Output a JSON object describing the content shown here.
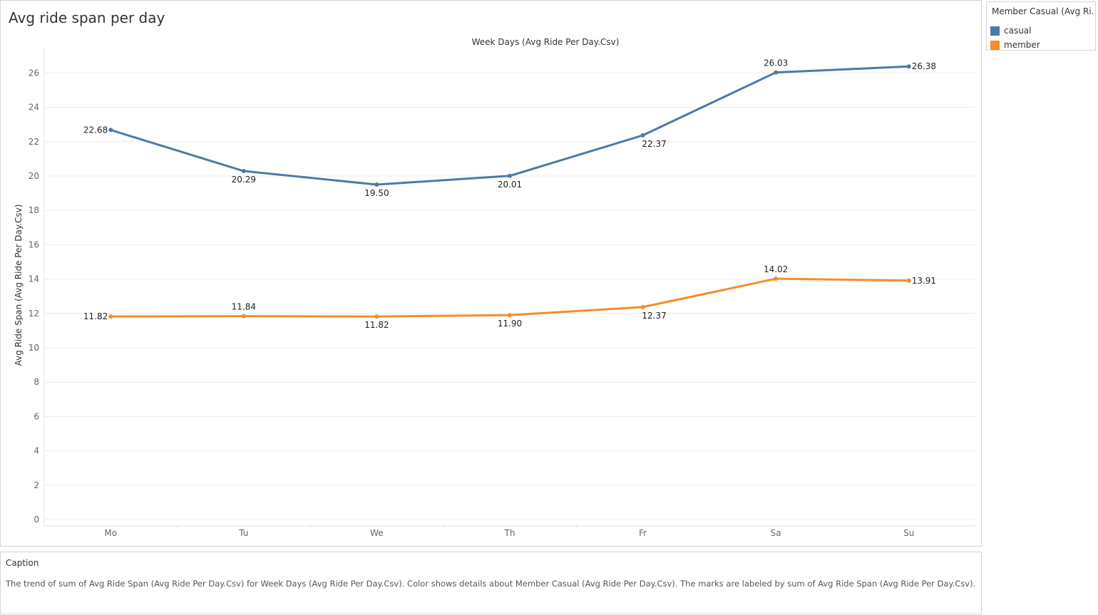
{
  "sheet": {
    "title": "Avg ride span per day"
  },
  "legend": {
    "title": "Member Casual (Avg Ri...",
    "items": [
      {
        "label": "casual",
        "color": "#4e79a7"
      },
      {
        "label": "member",
        "color": "#f28e2b"
      }
    ]
  },
  "caption": {
    "title": "Caption",
    "text": "The trend of sum of Avg Ride Span (Avg Ride Per Day.Csv) for Week Days (Avg Ride Per Day.Csv).  Color shows details about Member Casual (Avg Ride Per Day.Csv).  The marks are labeled by sum of Avg Ride Span (Avg Ride Per Day.Csv)."
  },
  "chart_data": {
    "type": "line",
    "title": "Avg ride span per day",
    "xlabel": "Week Days (Avg Ride Per Day.Csv)",
    "ylabel": "Avg Ride Span (Avg Ride Per Day.Csv)",
    "categories": [
      "Mo",
      "Tu",
      "We",
      "Th",
      "Fr",
      "Sa",
      "Su"
    ],
    "ylim": [
      0,
      27
    ],
    "yticks": [
      0,
      2,
      4,
      6,
      8,
      10,
      12,
      14,
      16,
      18,
      20,
      22,
      24,
      26
    ],
    "grid": true,
    "legend_position": "top-right",
    "series": [
      {
        "name": "casual",
        "color": "#4e79a7",
        "values": [
          22.68,
          20.29,
          19.5,
          20.01,
          22.37,
          26.03,
          26.38
        ],
        "labels": [
          "22.68",
          "20.29",
          "19.50",
          "20.01",
          "22.37",
          "26.03",
          "26.38"
        ]
      },
      {
        "name": "member",
        "color": "#f28e2b",
        "values": [
          11.82,
          11.84,
          11.82,
          11.9,
          12.37,
          14.02,
          13.91
        ],
        "labels": [
          "11.82",
          "11.84",
          "11.82",
          "11.90",
          "12.37",
          "14.02",
          "13.91"
        ]
      }
    ]
  }
}
